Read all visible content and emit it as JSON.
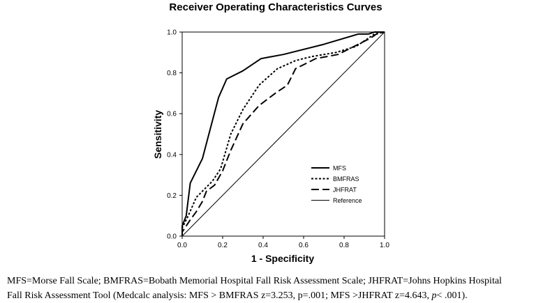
{
  "chart_data": {
    "type": "line",
    "title": "Receiver Operating Characteristics Curves",
    "xlabel": "1 - Specificity",
    "ylabel": "Sensitivity",
    "xlim": [
      0,
      1
    ],
    "ylim": [
      0,
      1
    ],
    "x_ticks": [
      "0.0",
      "0.2",
      "0.4",
      "0.6",
      "0.8",
      "1.0"
    ],
    "y_ticks": [
      "0.0",
      "0.2",
      "0.4",
      "0.6",
      "0.8",
      "1.0"
    ],
    "grid": false,
    "legend_position": "bottom-right",
    "series": [
      {
        "name": "MFS",
        "style": "solid-thick",
        "points": [
          [
            0,
            0
          ],
          [
            0,
            0.05
          ],
          [
            0.02,
            0.1
          ],
          [
            0.04,
            0.26
          ],
          [
            0.1,
            0.38
          ],
          [
            0.18,
            0.68
          ],
          [
            0.22,
            0.77
          ],
          [
            0.3,
            0.81
          ],
          [
            0.39,
            0.87
          ],
          [
            0.5,
            0.89
          ],
          [
            0.7,
            0.94
          ],
          [
            0.87,
            0.99
          ],
          [
            0.92,
            0.99
          ],
          [
            0.95,
            1.0
          ],
          [
            1.0,
            1.0
          ]
        ]
      },
      {
        "name": "BMFRAS",
        "style": "dotted",
        "points": [
          [
            0,
            0
          ],
          [
            0,
            0.04
          ],
          [
            0.03,
            0.1
          ],
          [
            0.07,
            0.19
          ],
          [
            0.1,
            0.22
          ],
          [
            0.15,
            0.27
          ],
          [
            0.19,
            0.33
          ],
          [
            0.24,
            0.5
          ],
          [
            0.3,
            0.62
          ],
          [
            0.38,
            0.74
          ],
          [
            0.47,
            0.82
          ],
          [
            0.56,
            0.86
          ],
          [
            0.64,
            0.88
          ],
          [
            0.76,
            0.9
          ],
          [
            0.86,
            0.93
          ],
          [
            0.92,
            0.97
          ],
          [
            0.95,
            0.99
          ],
          [
            1.0,
            1.0
          ]
        ]
      },
      {
        "name": "JHFRAT",
        "style": "long-dash",
        "points": [
          [
            0,
            0
          ],
          [
            0,
            0.02
          ],
          [
            0.04,
            0.08
          ],
          [
            0.07,
            0.12
          ],
          [
            0.1,
            0.17
          ],
          [
            0.12,
            0.22
          ],
          [
            0.16,
            0.25
          ],
          [
            0.2,
            0.32
          ],
          [
            0.24,
            0.42
          ],
          [
            0.3,
            0.55
          ],
          [
            0.38,
            0.64
          ],
          [
            0.46,
            0.7
          ],
          [
            0.52,
            0.74
          ],
          [
            0.56,
            0.82
          ],
          [
            0.66,
            0.87
          ],
          [
            0.77,
            0.89
          ],
          [
            0.87,
            0.94
          ],
          [
            0.93,
            0.97
          ],
          [
            0.96,
            0.99
          ],
          [
            1.0,
            1.0
          ]
        ]
      },
      {
        "name": "Reference",
        "style": "thin",
        "points": [
          [
            0,
            0
          ],
          [
            1,
            1
          ]
        ]
      }
    ]
  },
  "caption": {
    "line1": "MFS=Morse Fall Scale; BMFRAS=Bobath Memorial Hospital Fall Risk Assessment Scale; JHFRAT=Johns Hopkins Hospital",
    "line2_prefix": "Fall Risk Assessment Tool (Medcalc analysis: MFS > BMFRAS z=3.253, p=.001; MFS >JHFRAT z=4.643, ",
    "line2_italic": "p",
    "line2_suffix": "< .001)."
  }
}
